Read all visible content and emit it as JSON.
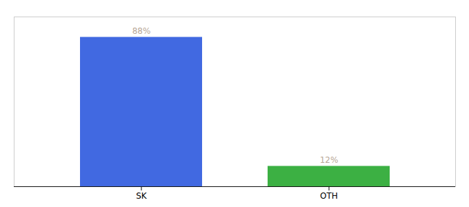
{
  "chart_data": {
    "type": "bar",
    "categories": [
      "SK",
      "OTH"
    ],
    "values": [
      88,
      12
    ],
    "value_labels": [
      "88%",
      "12%"
    ],
    "colors": [
      "#4169e1",
      "#3cb043"
    ],
    "ylim": [
      0,
      100
    ],
    "data_labels": true,
    "tick_labels": "x"
  }
}
